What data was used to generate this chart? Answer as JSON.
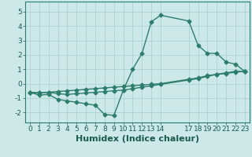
{
  "xlabel": "Humidex (Indice chaleur)",
  "background_color": "#cce9e7",
  "line_color": "#2d7d6e",
  "xlim": [
    -0.5,
    23.5
  ],
  "ylim": [
    -2.7,
    5.7
  ],
  "xticks": [
    0,
    1,
    2,
    3,
    4,
    5,
    6,
    7,
    8,
    9,
    10,
    11,
    12,
    13,
    14,
    17,
    18,
    19,
    20,
    21,
    22,
    23
  ],
  "yticks": [
    -2,
    -1,
    0,
    1,
    2,
    3,
    4,
    5
  ],
  "line1_x": [
    0,
    1,
    2,
    3,
    4,
    5,
    6,
    7,
    8,
    9,
    10,
    11,
    12,
    13,
    14,
    17,
    18,
    19,
    20,
    21,
    22,
    23
  ],
  "line1_y": [
    -0.6,
    -0.8,
    -0.75,
    -1.1,
    -1.2,
    -1.3,
    -1.4,
    -1.5,
    -2.15,
    -2.2,
    -0.45,
    1.0,
    2.1,
    4.3,
    4.75,
    4.35,
    2.65,
    2.1,
    2.1,
    1.5,
    1.35,
    0.85
  ],
  "line2_x": [
    0,
    1,
    2,
    3,
    4,
    5,
    6,
    7,
    8,
    9,
    10,
    11,
    12,
    13,
    14,
    17,
    18,
    19,
    20,
    21,
    22,
    23
  ],
  "line2_y": [
    -0.6,
    -0.65,
    -0.6,
    -0.55,
    -0.5,
    -0.45,
    -0.4,
    -0.35,
    -0.3,
    -0.25,
    -0.2,
    -0.15,
    -0.1,
    -0.05,
    0.0,
    0.3,
    0.4,
    0.55,
    0.65,
    0.7,
    0.8,
    0.85
  ],
  "line3_x": [
    0,
    1,
    2,
    3,
    4,
    5,
    6,
    7,
    8,
    9,
    10,
    11,
    12,
    13,
    14,
    17,
    18,
    19,
    20,
    21,
    22,
    23
  ],
  "line3_y": [
    -0.6,
    -0.65,
    -0.6,
    -0.7,
    -0.75,
    -0.7,
    -0.65,
    -0.6,
    -0.55,
    -0.5,
    -0.45,
    -0.35,
    -0.25,
    -0.15,
    -0.05,
    0.25,
    0.35,
    0.5,
    0.65,
    0.75,
    0.85,
    0.85
  ],
  "grid_color": "#aad4d0",
  "marker": "D",
  "markersize": 2.5,
  "linewidth": 1.0,
  "xlabel_fontsize": 8,
  "tick_fontsize": 6.5
}
